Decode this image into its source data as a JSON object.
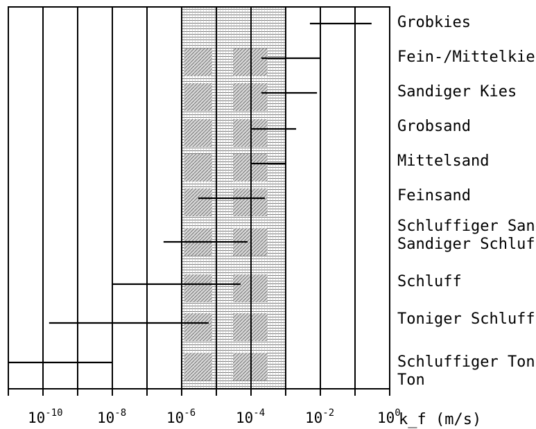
{
  "chart_data": {
    "type": "bar",
    "orientation": "horizontal",
    "x_scale": "log10",
    "xlim": [
      1e-11,
      1
    ],
    "xlabel": "k_f (m/s)",
    "x_ticks": [
      {
        "base": "10",
        "exp": "-10"
      },
      {
        "base": "10",
        "exp": "-8"
      },
      {
        "base": "10",
        "exp": "-6"
      },
      {
        "base": "10",
        "exp": "-4"
      },
      {
        "base": "10",
        "exp": "-2"
      },
      {
        "base": "10",
        "exp": "0"
      }
    ],
    "x_tick_values": [
      1e-10,
      1e-08,
      1e-06,
      0.0001,
      0.01,
      1
    ],
    "shaded_band": [
      1e-06,
      0.001
    ],
    "grid": "vertical lines at every decade",
    "series": [
      {
        "category": "Grobkies",
        "range": [
          0.005,
          0.3
        ]
      },
      {
        "category": "Fein-/Mittelkies",
        "range": [
          0.0002,
          0.01
        ]
      },
      {
        "category": "Sandiger Kies",
        "range": [
          0.0002,
          0.008
        ]
      },
      {
        "category": "Grobsand",
        "range": [
          0.0001,
          0.002
        ]
      },
      {
        "category": "Mittelsand",
        "range": [
          0.0001,
          0.001
        ]
      },
      {
        "category": "Feinsand",
        "range": [
          3e-06,
          0.00025
        ]
      },
      {
        "category": "Schluffiger Sand,\nSandiger Schluff",
        "range": [
          3e-07,
          8e-05
        ]
      },
      {
        "category": "Schluff",
        "range": [
          1e-08,
          5e-05
        ]
      },
      {
        "category": "Toniger Schluff",
        "range": [
          1.5e-10,
          6e-06
        ]
      },
      {
        "category": "Schluffiger Ton,\nTon",
        "range": [
          1e-11,
          1e-08
        ]
      }
    ]
  },
  "colors": {
    "line": "#000000",
    "background": "#ffffff",
    "band": "#cfcfcf"
  }
}
